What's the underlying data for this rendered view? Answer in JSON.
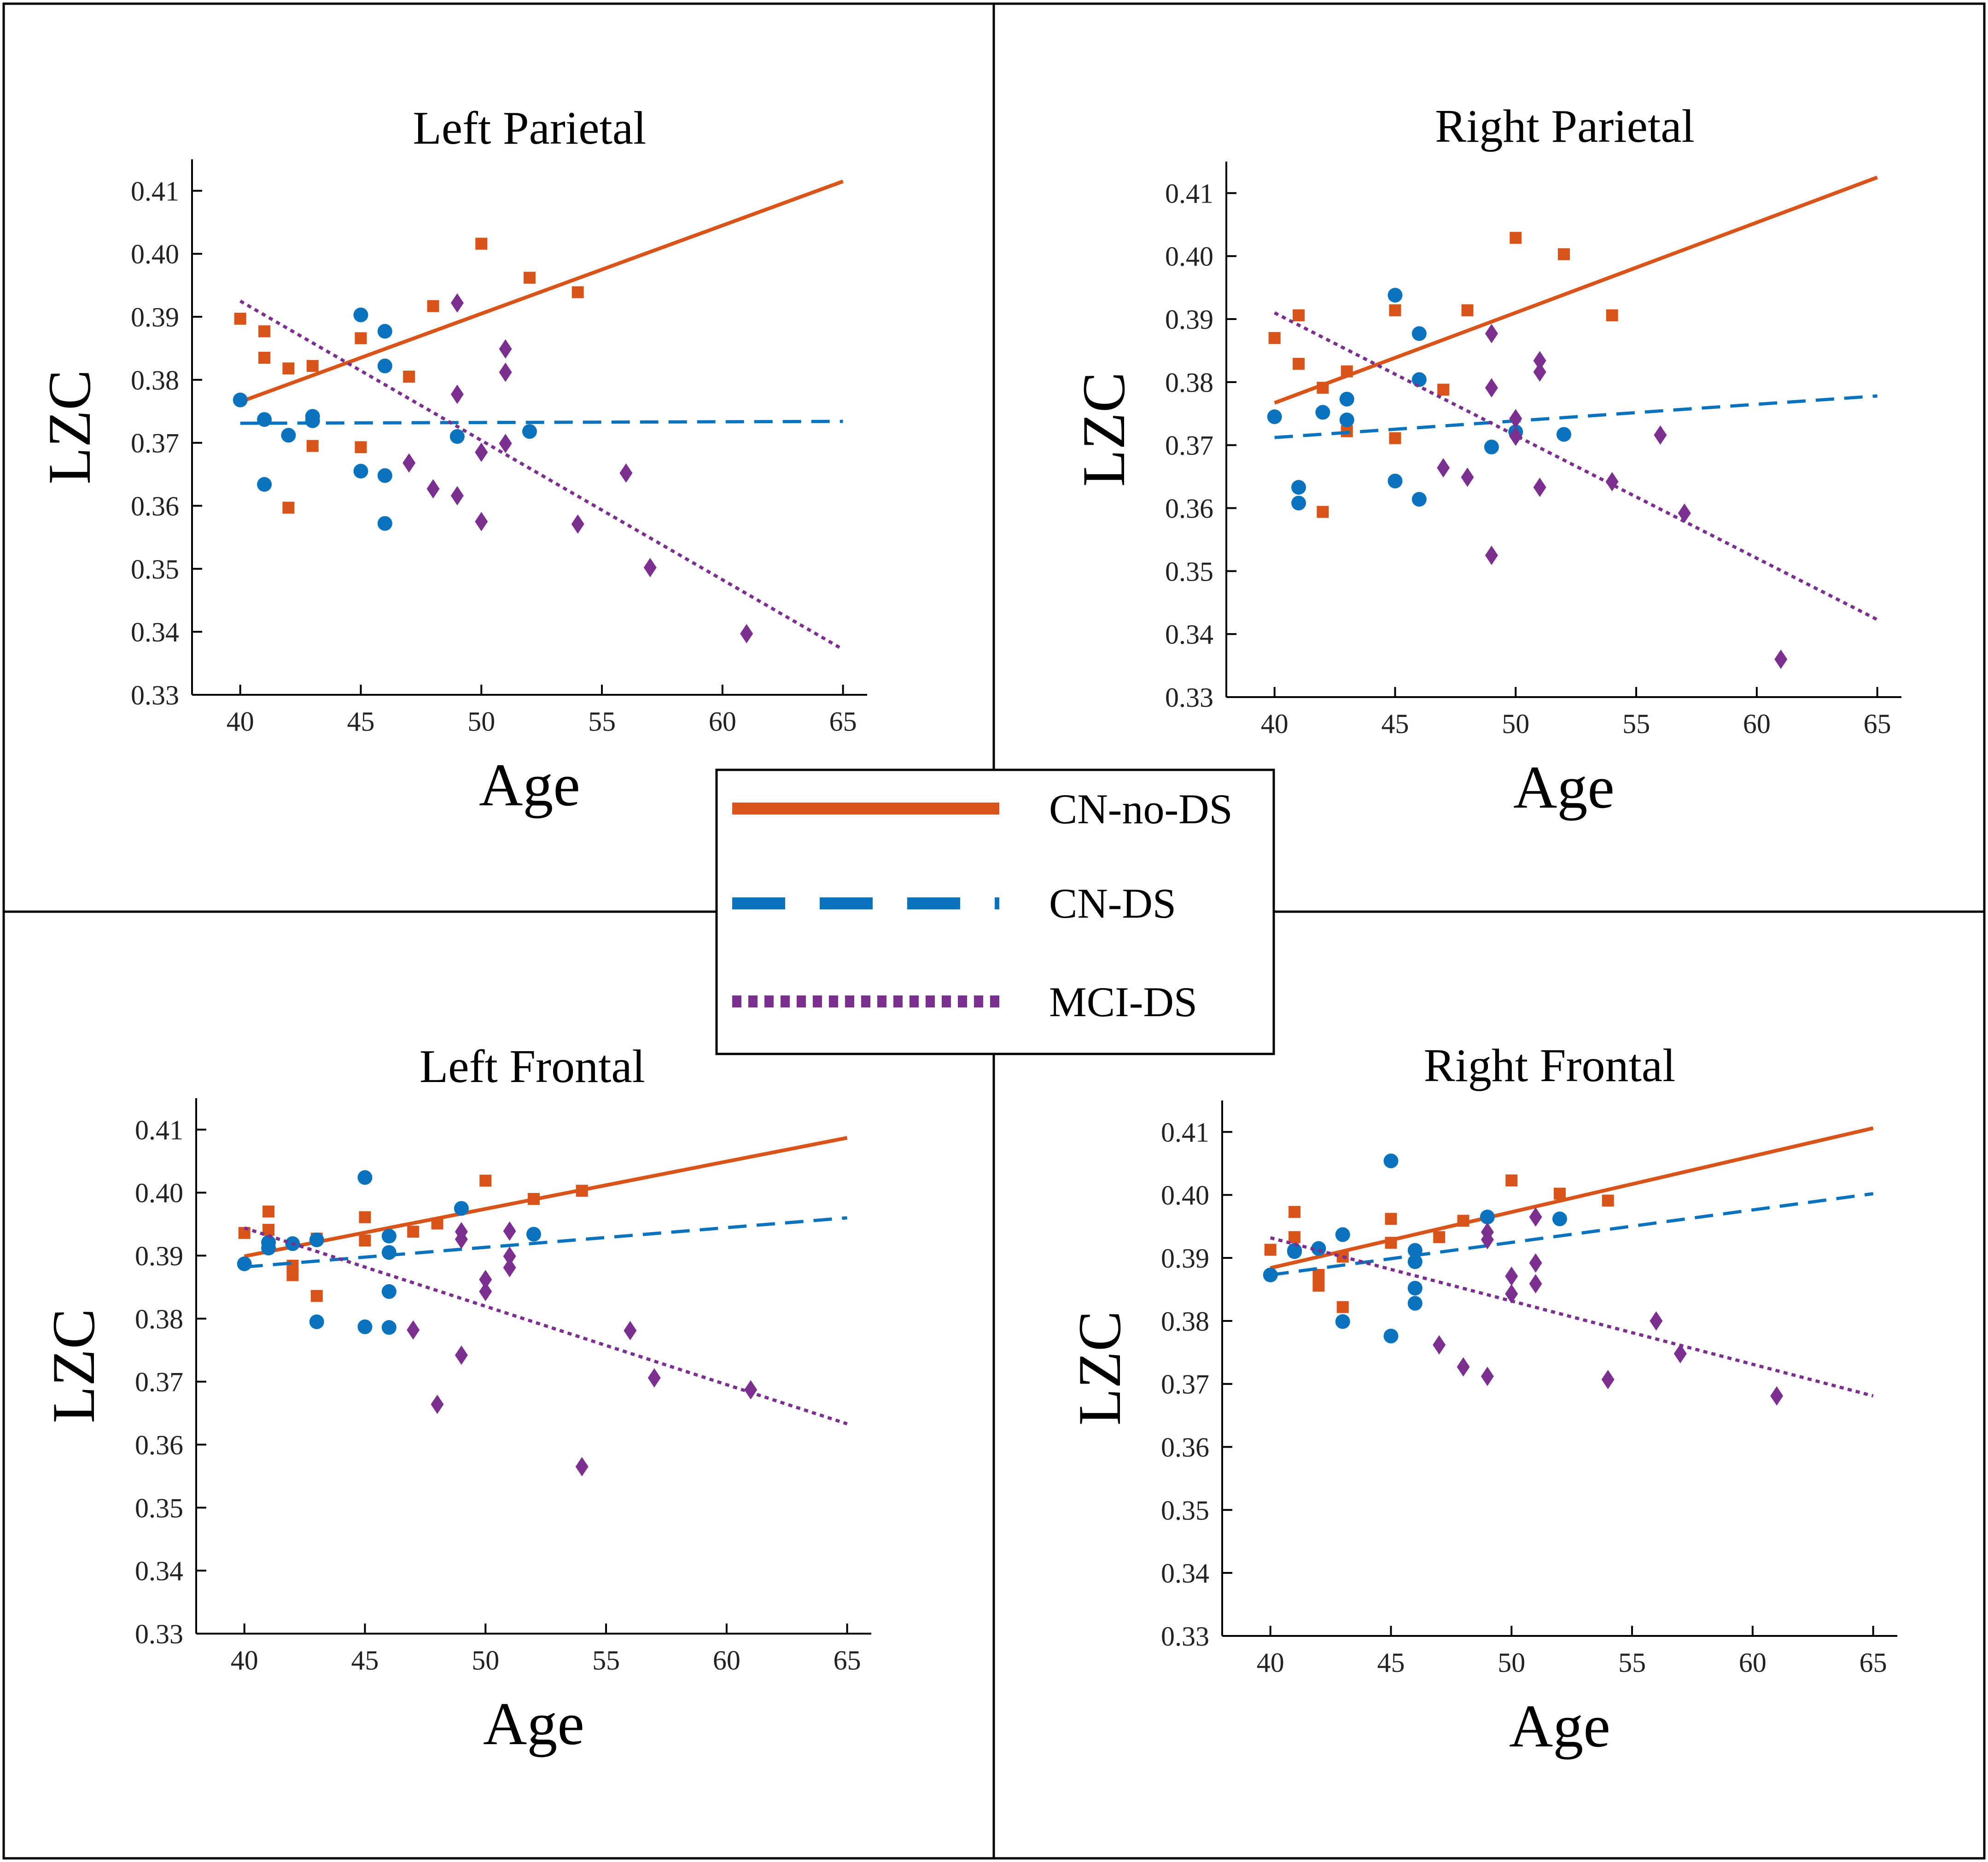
{
  "figure": {
    "legend_items": [
      "CN-no-DS",
      "CN-DS",
      "MCI-DS"
    ]
  },
  "colors": {
    "cn_no_ds": "#D9541A",
    "cn_ds": "#0B72BD",
    "mci_ds": "#7B2F8F",
    "axis": "#000000"
  },
  "chart_data": [
    {
      "type": "scatter",
      "title": "Left Parietal",
      "xlabel": "Age",
      "ylabel": "LZC",
      "xlim": [
        38,
        66
      ],
      "ylim": [
        0.33,
        0.415
      ],
      "xticks": [
        "40",
        "45",
        "50",
        "55",
        "60",
        "65"
      ],
      "yticks": [
        "0.33",
        "0.34",
        "0.35",
        "0.36",
        "0.37",
        "0.38",
        "0.39",
        "0.40",
        "0.41"
      ],
      "legend": "center",
      "series": [
        {
          "name": "CN-no-DS",
          "marker": "square",
          "line_style": "solid",
          "fit": {
            "x": [
              40,
              65
            ],
            "y": [
              0.3765,
              0.4115
            ]
          },
          "points": [
            [
              40,
              0.3897
            ],
            [
              41,
              0.3877
            ],
            [
              41,
              0.3835
            ],
            [
              42,
              0.3818
            ],
            [
              42,
              0.3597
            ],
            [
              43,
              0.3822
            ],
            [
              43,
              0.3695
            ],
            [
              45,
              0.3866
            ],
            [
              45,
              0.3693
            ],
            [
              47,
              0.3805
            ],
            [
              48,
              0.3917
            ],
            [
              50,
              0.4016
            ],
            [
              52,
              0.3962
            ],
            [
              54,
              0.3939
            ]
          ]
        },
        {
          "name": "CN-DS",
          "marker": "circle",
          "line_style": "dashed",
          "fit": {
            "x": [
              40,
              65
            ],
            "y": [
              0.3731,
              0.3734
            ]
          },
          "points": [
            [
              40,
              0.3768
            ],
            [
              41,
              0.3737
            ],
            [
              41,
              0.3634
            ],
            [
              42,
              0.3712
            ],
            [
              43,
              0.3742
            ],
            [
              43,
              0.3735
            ],
            [
              45,
              0.3903
            ],
            [
              45,
              0.3655
            ],
            [
              46,
              0.3877
            ],
            [
              46,
              0.3822
            ],
            [
              46,
              0.3648
            ],
            [
              46,
              0.3572
            ],
            [
              49,
              0.371
            ],
            [
              52,
              0.3718
            ]
          ]
        },
        {
          "name": "MCI-DS",
          "marker": "diamond",
          "line_style": "dotted",
          "fit": {
            "x": [
              40,
              65
            ],
            "y": [
              0.3925,
              0.3372
            ]
          },
          "points": [
            [
              47,
              0.3668
            ],
            [
              48,
              0.3627
            ],
            [
              49,
              0.3922
            ],
            [
              49,
              0.3777
            ],
            [
              49,
              0.3616
            ],
            [
              50,
              0.3685
            ],
            [
              50,
              0.3575
            ],
            [
              51,
              0.3849
            ],
            [
              51,
              0.3812
            ],
            [
              51,
              0.3699
            ],
            [
              54,
              0.3571
            ],
            [
              56,
              0.3652
            ],
            [
              57,
              0.3502
            ],
            [
              61,
              0.3397
            ]
          ]
        }
      ]
    },
    {
      "type": "scatter",
      "title": "Right Parietal",
      "xlabel": "Age",
      "ylabel": "LZC",
      "xlim": [
        38,
        66
      ],
      "ylim": [
        0.33,
        0.415
      ],
      "xticks": [
        "40",
        "45",
        "50",
        "55",
        "60",
        "65"
      ],
      "yticks": [
        "0.33",
        "0.34",
        "0.35",
        "0.36",
        "0.37",
        "0.38",
        "0.39",
        "0.40",
        "0.41"
      ],
      "legend": "center",
      "series": [
        {
          "name": "CN-no-DS",
          "marker": "square",
          "line_style": "solid",
          "fit": {
            "x": [
              40,
              65
            ],
            "y": [
              0.3767,
              0.4125
            ]
          },
          "points": [
            [
              40,
              0.387
            ],
            [
              41,
              0.3906
            ],
            [
              41,
              0.3829
            ],
            [
              42,
              0.3791
            ],
            [
              42,
              0.3594
            ],
            [
              43,
              0.3817
            ],
            [
              43,
              0.3722
            ],
            [
              45,
              0.3914
            ],
            [
              45,
              0.3711
            ],
            [
              47,
              0.3788
            ],
            [
              48,
              0.3914
            ],
            [
              50,
              0.4029
            ],
            [
              52,
              0.4003
            ],
            [
              54,
              0.3906
            ]
          ]
        },
        {
          "name": "CN-DS",
          "marker": "circle",
          "line_style": "dashed",
          "fit": {
            "x": [
              40,
              65
            ],
            "y": [
              0.3712,
              0.3778
            ]
          },
          "points": [
            [
              40,
              0.3745
            ],
            [
              41,
              0.3633
            ],
            [
              41,
              0.3608
            ],
            [
              42,
              0.3752
            ],
            [
              43,
              0.3773
            ],
            [
              43,
              0.374
            ],
            [
              45,
              0.3938
            ],
            [
              45,
              0.3643
            ],
            [
              46,
              0.3877
            ],
            [
              46,
              0.3804
            ],
            [
              46,
              0.3614
            ],
            [
              49,
              0.3697
            ],
            [
              50,
              0.3721
            ],
            [
              52,
              0.3717
            ]
          ]
        },
        {
          "name": "MCI-DS",
          "marker": "diamond",
          "line_style": "dotted",
          "fit": {
            "x": [
              40,
              65
            ],
            "y": [
              0.391,
              0.3423
            ]
          },
          "points": [
            [
              47,
              0.3664
            ],
            [
              48,
              0.3649
            ],
            [
              49,
              0.3877
            ],
            [
              49,
              0.3791
            ],
            [
              49,
              0.3525
            ],
            [
              50,
              0.3742
            ],
            [
              50,
              0.3714
            ],
            [
              51,
              0.3834
            ],
            [
              51,
              0.3816
            ],
            [
              51,
              0.3633
            ],
            [
              54,
              0.3642
            ],
            [
              56,
              0.3716
            ],
            [
              57,
              0.3592
            ],
            [
              61,
              0.336
            ]
          ]
        }
      ]
    },
    {
      "type": "scatter",
      "title": "Left Frontal",
      "xlabel": "Age",
      "ylabel": "LZC",
      "xlim": [
        38,
        66
      ],
      "ylim": [
        0.33,
        0.415
      ],
      "xticks": [
        "40",
        "45",
        "50",
        "55",
        "60",
        "65"
      ],
      "yticks": [
        "0.33",
        "0.34",
        "0.35",
        "0.36",
        "0.37",
        "0.38",
        "0.39",
        "0.40",
        "0.41"
      ],
      "legend": "center",
      "series": [
        {
          "name": "CN-no-DS",
          "marker": "square",
          "line_style": "solid",
          "fit": {
            "x": [
              40,
              65
            ],
            "y": [
              0.3899,
              0.4087
            ]
          },
          "points": [
            [
              40,
              0.3936
            ],
            [
              41,
              0.397
            ],
            [
              41,
              0.3941
            ],
            [
              42,
              0.3884
            ],
            [
              42,
              0.3869
            ],
            [
              43,
              0.3927
            ],
            [
              43,
              0.3836
            ],
            [
              45,
              0.3961
            ],
            [
              45,
              0.3924
            ],
            [
              47,
              0.3938
            ],
            [
              48,
              0.3951
            ],
            [
              50,
              0.4019
            ],
            [
              52,
              0.399
            ],
            [
              54,
              0.4003
            ]
          ]
        },
        {
          "name": "CN-DS",
          "marker": "circle",
          "line_style": "dashed",
          "fit": {
            "x": [
              40,
              65
            ],
            "y": [
              0.3882,
              0.396
            ]
          },
          "points": [
            [
              40,
              0.3887
            ],
            [
              41,
              0.3921
            ],
            [
              41,
              0.3912
            ],
            [
              42,
              0.3919
            ],
            [
              43,
              0.3925
            ],
            [
              43,
              0.3795
            ],
            [
              45,
              0.4024
            ],
            [
              45,
              0.3787
            ],
            [
              46,
              0.3931
            ],
            [
              46,
              0.3905
            ],
            [
              46,
              0.3843
            ],
            [
              46,
              0.3786
            ],
            [
              49,
              0.3975
            ],
            [
              52,
              0.3934
            ]
          ]
        },
        {
          "name": "MCI-DS",
          "marker": "diamond",
          "line_style": "dotted",
          "fit": {
            "x": [
              40,
              65
            ],
            "y": [
              0.3944,
              0.3633
            ]
          },
          "points": [
            [
              47,
              0.3782
            ],
            [
              48,
              0.3664
            ],
            [
              49,
              0.3938
            ],
            [
              49,
              0.3926
            ],
            [
              49,
              0.3742
            ],
            [
              50,
              0.3862
            ],
            [
              50,
              0.3843
            ],
            [
              51,
              0.3939
            ],
            [
              51,
              0.3899
            ],
            [
              51,
              0.3881
            ],
            [
              54,
              0.3565
            ],
            [
              56,
              0.3781
            ],
            [
              57,
              0.3706
            ],
            [
              61,
              0.3687
            ]
          ]
        }
      ]
    },
    {
      "type": "scatter",
      "title": "Right Frontal",
      "xlabel": "Age",
      "ylabel": "LZC",
      "xlim": [
        38,
        66
      ],
      "ylim": [
        0.33,
        0.415
      ],
      "xticks": [
        "40",
        "45",
        "50",
        "55",
        "60",
        "65"
      ],
      "yticks": [
        "0.33",
        "0.34",
        "0.35",
        "0.36",
        "0.37",
        "0.38",
        "0.39",
        "0.40",
        "0.41"
      ],
      "legend": "center",
      "series": [
        {
          "name": "CN-no-DS",
          "marker": "square",
          "line_style": "solid",
          "fit": {
            "x": [
              40,
              65
            ],
            "y": [
              0.3884,
              0.4106
            ]
          },
          "points": [
            [
              40,
              0.3913
            ],
            [
              41,
              0.3973
            ],
            [
              41,
              0.3933
            ],
            [
              42,
              0.3873
            ],
            [
              42,
              0.3856
            ],
            [
              43,
              0.3902
            ],
            [
              43,
              0.3822
            ],
            [
              45,
              0.3962
            ],
            [
              45,
              0.3924
            ],
            [
              47,
              0.3933
            ],
            [
              48,
              0.3959
            ],
            [
              50,
              0.4023
            ],
            [
              52,
              0.4002
            ],
            [
              54,
              0.3991
            ]
          ]
        },
        {
          "name": "CN-DS",
          "marker": "circle",
          "line_style": "dashed",
          "fit": {
            "x": [
              40,
              65
            ],
            "y": [
              0.3873,
              0.4002
            ]
          },
          "points": [
            [
              40,
              0.3873
            ],
            [
              41,
              0.391
            ],
            [
              41,
              0.3912
            ],
            [
              42,
              0.3915
            ],
            [
              43,
              0.3937
            ],
            [
              43,
              0.3799
            ],
            [
              45,
              0.4054
            ],
            [
              45,
              0.3776
            ],
            [
              46,
              0.3912
            ],
            [
              46,
              0.3894
            ],
            [
              46,
              0.3852
            ],
            [
              46,
              0.3828
            ],
            [
              49,
              0.3965
            ],
            [
              52,
              0.3962
            ]
          ]
        },
        {
          "name": "MCI-DS",
          "marker": "diamond",
          "line_style": "dotted",
          "fit": {
            "x": [
              40,
              65
            ],
            "y": [
              0.3932,
              0.3681
            ]
          },
          "points": [
            [
              47,
              0.3762
            ],
            [
              48,
              0.3727
            ],
            [
              49,
              0.3941
            ],
            [
              49,
              0.3929
            ],
            [
              49,
              0.3712
            ],
            [
              50,
              0.3871
            ],
            [
              50,
              0.3843
            ],
            [
              51,
              0.3965
            ],
            [
              51,
              0.3892
            ],
            [
              51,
              0.3859
            ],
            [
              54,
              0.3707
            ],
            [
              56,
              0.38
            ],
            [
              57,
              0.3748
            ],
            [
              61,
              0.3681
            ]
          ]
        }
      ]
    }
  ]
}
